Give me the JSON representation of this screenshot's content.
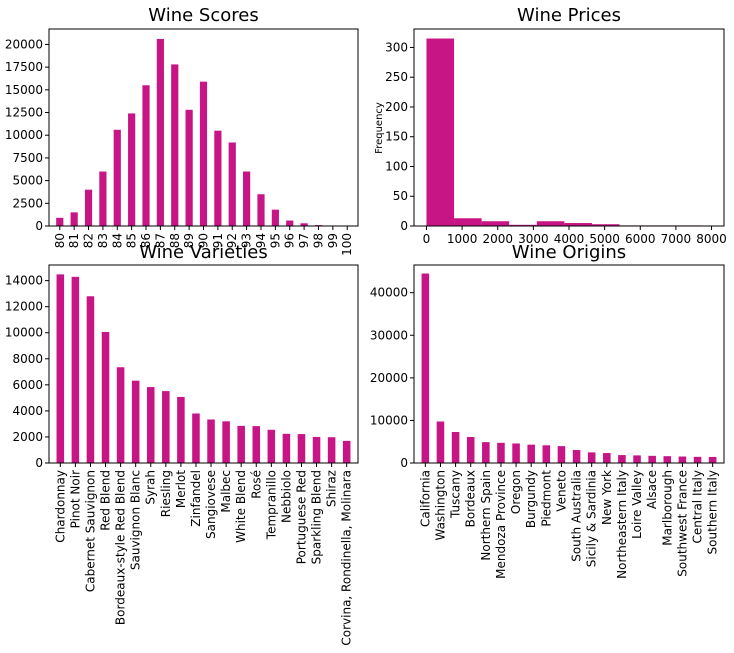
{
  "chart_data": [
    {
      "type": "bar",
      "title": "Wine Scores",
      "xlabel": "",
      "ylabel": "",
      "ylim": [
        0,
        21700
      ],
      "yticks": [
        0,
        2500,
        5000,
        7500,
        10000,
        12500,
        15000,
        17500,
        20000
      ],
      "categories": [
        "80",
        "81",
        "82",
        "83",
        "84",
        "85",
        "86",
        "87",
        "88",
        "89",
        "90",
        "91",
        "92",
        "93",
        "94",
        "95",
        "96",
        "97",
        "98",
        "99",
        "100"
      ],
      "values": [
        900,
        1500,
        4000,
        6000,
        10600,
        12400,
        15500,
        20600,
        17800,
        12800,
        15900,
        10500,
        9200,
        6000,
        3500,
        1800,
        600,
        300,
        100,
        50,
        30
      ],
      "color": "#c71585",
      "legend": "none",
      "grid": false
    },
    {
      "type": "bar",
      "title": "Wine Prices",
      "xlabel": "",
      "ylabel": "Frequency",
      "xlim": [
        -350,
        8350
      ],
      "ylim": [
        0,
        331
      ],
      "xticks": [
        0,
        1000,
        2000,
        3000,
        4000,
        5000,
        6000,
        7000,
        8000
      ],
      "yticks": [
        0,
        50,
        100,
        150,
        200,
        250,
        300
      ],
      "bins": [
        {
          "x0": 0,
          "x1": 774,
          "value": 315
        },
        {
          "x0": 774,
          "x1": 1548,
          "value": 13
        },
        {
          "x0": 1548,
          "x1": 2322,
          "value": 8
        },
        {
          "x0": 2322,
          "x1": 3096,
          "value": 2
        },
        {
          "x0": 3096,
          "x1": 3870,
          "value": 8
        },
        {
          "x0": 3870,
          "x1": 4644,
          "value": 5
        },
        {
          "x0": 4644,
          "x1": 5418,
          "value": 3
        },
        {
          "x0": 5418,
          "x1": 6192,
          "value": 1
        },
        {
          "x0": 6192,
          "x1": 6966,
          "value": 1
        },
        {
          "x0": 6966,
          "x1": 7740,
          "value": 1
        }
      ],
      "color": "#c71585",
      "legend": "none",
      "grid": false
    },
    {
      "type": "bar",
      "title": "Wine Varieties",
      "xlabel": "",
      "ylabel": "",
      "ylim": [
        0,
        15200
      ],
      "yticks": [
        0,
        2000,
        4000,
        6000,
        8000,
        10000,
        12000,
        14000
      ],
      "categories": [
        "Chardonnay",
        "Pinot Noir",
        "Cabernet Sauvignon",
        "Red Blend",
        "Bordeaux-style Red Blend",
        "Sauvignon Blanc",
        "Syrah",
        "Riesling",
        "Merlot",
        "Zinfandel",
        "Sangiovese",
        "Malbec",
        "White Blend",
        "Rosé",
        "Tempranillo",
        "Nebbiolo",
        "Portuguese Red",
        "Sparkling Blend",
        "Shiraz",
        "Corvina, Rondinella, Molinara"
      ],
      "values": [
        14480,
        14290,
        12800,
        10060,
        7350,
        6320,
        5830,
        5520,
        5070,
        3800,
        3340,
        3200,
        2850,
        2830,
        2550,
        2240,
        2220,
        2000,
        1980,
        1700
      ],
      "color": "#c71585",
      "legend": "none",
      "grid": false
    },
    {
      "type": "bar",
      "title": "Wine Origins",
      "xlabel": "",
      "ylabel": "",
      "ylim": [
        0,
        46500
      ],
      "yticks": [
        0,
        10000,
        20000,
        30000,
        40000
      ],
      "categories": [
        "California",
        "Washington",
        "Tuscany",
        "Bordeaux",
        "Northern Spain",
        "Mendoza Province",
        "Oregon",
        "Burgundy",
        "Piedmont",
        "Veneto",
        "South Australia",
        "Sicily & Sardinia",
        "New York",
        "Northeastern Italy",
        "Loire Valley",
        "Alsace",
        "Marlborough",
        "Southwest France",
        "Central Italy",
        "Southern Italy"
      ],
      "values": [
        44500,
        9750,
        7280,
        6110,
        4900,
        4740,
        4590,
        4310,
        4160,
        3960,
        3050,
        2500,
        2340,
        1860,
        1790,
        1680,
        1600,
        1520,
        1450,
        1420
      ],
      "color": "#c71585",
      "legend": "none",
      "grid": false
    }
  ]
}
